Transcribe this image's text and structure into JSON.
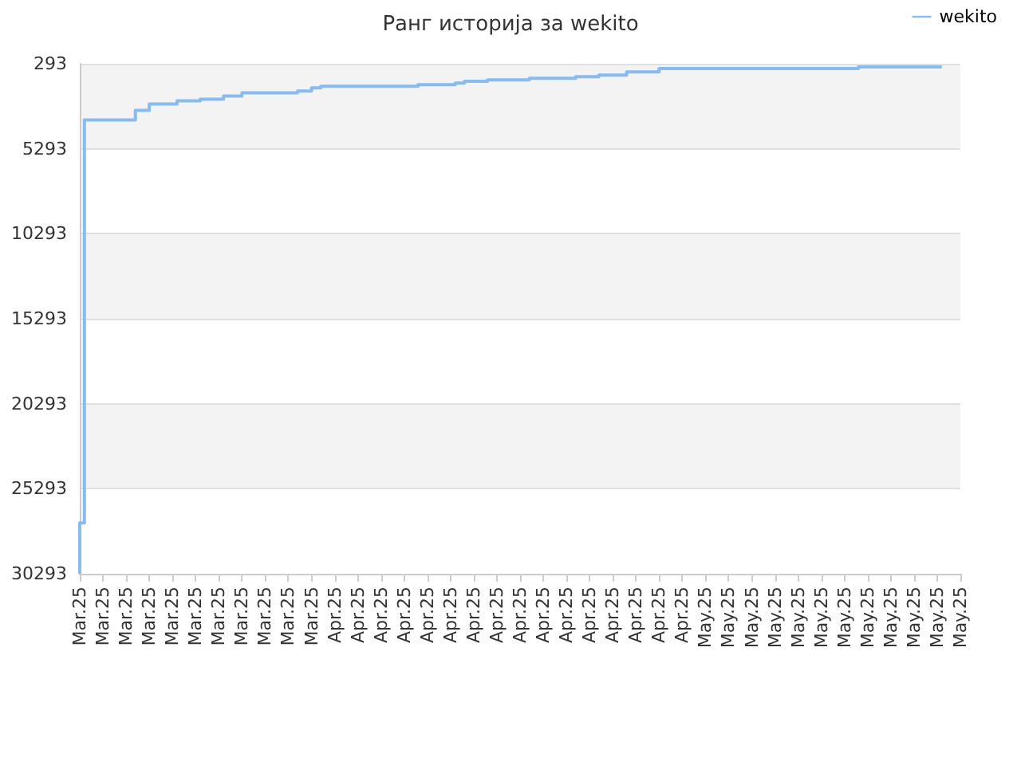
{
  "chart_data": {
    "type": "step",
    "title": "Ранг историја за wekito",
    "legend": "top right",
    "grid": "y",
    "marker": "none",
    "categories": [
      "Mar.25",
      null,
      null,
      null,
      null,
      "Mar.25",
      null,
      null,
      null,
      null,
      "Mar.25",
      null,
      null,
      null,
      null,
      "Mar.25",
      null,
      null,
      null,
      null,
      "Mar.25",
      null,
      null,
      null,
      null,
      "Mar.25",
      null,
      null,
      null,
      null,
      "Mar.25",
      null,
      null,
      null,
      null,
      "Mar.25",
      null,
      null,
      null,
      null,
      "Mar.25",
      null,
      null,
      null,
      null,
      "Mar.25",
      null,
      null,
      null,
      null,
      "Mar.25",
      null,
      null,
      null,
      null,
      "Apr.25",
      null,
      null,
      null,
      null,
      "Apr.25",
      null,
      null,
      null,
      null,
      "Apr.25",
      null,
      null,
      null,
      null,
      "Apr.25",
      null,
      null,
      null,
      null,
      "Apr.25",
      null,
      null,
      null,
      null,
      "Apr.25",
      null,
      null,
      null,
      null,
      "Apr.25",
      null,
      null,
      null,
      null,
      "Apr.25",
      null,
      null,
      null,
      null,
      "Apr.25",
      null,
      null,
      null,
      null,
      "Apr.25",
      null,
      null,
      null,
      null,
      "Apr.25",
      null,
      null,
      null,
      null,
      "Apr.25",
      null,
      null,
      null,
      null,
      "Apr.25",
      null,
      null,
      null,
      null,
      "Apr.25",
      null,
      null,
      null,
      null,
      "Apr.25",
      null,
      null,
      null,
      null,
      "Apr.25",
      null,
      null,
      null,
      null,
      "May.25",
      null,
      null,
      null,
      null,
      "May.25",
      null,
      null,
      null,
      null,
      "May.25",
      null,
      null,
      null,
      null,
      "May.25",
      null,
      null,
      null,
      null,
      "May.25",
      null,
      null,
      null,
      null,
      "May.25",
      null,
      null,
      null,
      null,
      "May.25",
      null,
      null,
      null,
      null,
      "May.25",
      null,
      null,
      null,
      null,
      "May.25",
      null,
      null,
      null,
      null,
      "May.25",
      null,
      null,
      null,
      null,
      "May.25",
      null,
      null,
      null,
      null,
      "May.25"
    ],
    "ylim": [
      30293,
      293
    ],
    "yticks": [
      293,
      5293,
      10293,
      15293,
      20293,
      25293,
      30293
    ],
    "series": [
      {
        "name": "wekito",
        "color": "#88bbee",
        "values": [
          30293,
          27300,
          3600,
          3600,
          3600,
          3600,
          3600,
          3600,
          3600,
          3600,
          3600,
          3600,
          3600,
          3040,
          3040,
          3040,
          2660,
          2660,
          2660,
          2660,
          2660,
          2660,
          2470,
          2470,
          2470,
          2470,
          2470,
          2380,
          2380,
          2380,
          2380,
          2380,
          2190,
          2190,
          2190,
          2190,
          2000,
          2000,
          2000,
          2000,
          2000,
          2000,
          2000,
          2000,
          2000,
          2000,
          2000,
          2000,
          1900,
          1900,
          1900,
          1710,
          1710,
          1620,
          1620,
          1620,
          1620,
          1620,
          1620,
          1620,
          1620,
          1620,
          1620,
          1620,
          1620,
          1620,
          1620,
          1620,
          1620,
          1620,
          1620,
          1620,
          1620,
          1620,
          1520,
          1520,
          1520,
          1520,
          1520,
          1520,
          1520,
          1520,
          1430,
          1430,
          1330,
          1330,
          1330,
          1330,
          1330,
          1240,
          1240,
          1240,
          1240,
          1240,
          1240,
          1240,
          1240,
          1240,
          1150,
          1150,
          1150,
          1150,
          1150,
          1150,
          1150,
          1150,
          1150,
          1150,
          1050,
          1050,
          1050,
          1050,
          1050,
          960,
          960,
          960,
          960,
          960,
          960,
          770,
          770,
          770,
          770,
          770,
          770,
          770,
          580,
          580,
          580,
          580,
          580,
          580,
          580,
          580,
          580,
          580,
          580,
          580,
          580,
          580,
          580,
          580,
          580,
          580,
          580,
          580,
          580,
          580,
          580,
          580,
          580,
          580,
          580,
          580,
          580,
          580,
          580,
          580,
          580,
          580,
          580,
          580,
          580,
          580,
          580,
          580,
          580,
          580,
          580,
          480,
          480,
          480,
          480,
          480,
          480,
          480,
          480,
          480,
          480,
          480,
          480,
          480,
          480,
          480,
          480,
          480,
          480,
          null,
          null,
          null,
          null
        ]
      }
    ]
  }
}
